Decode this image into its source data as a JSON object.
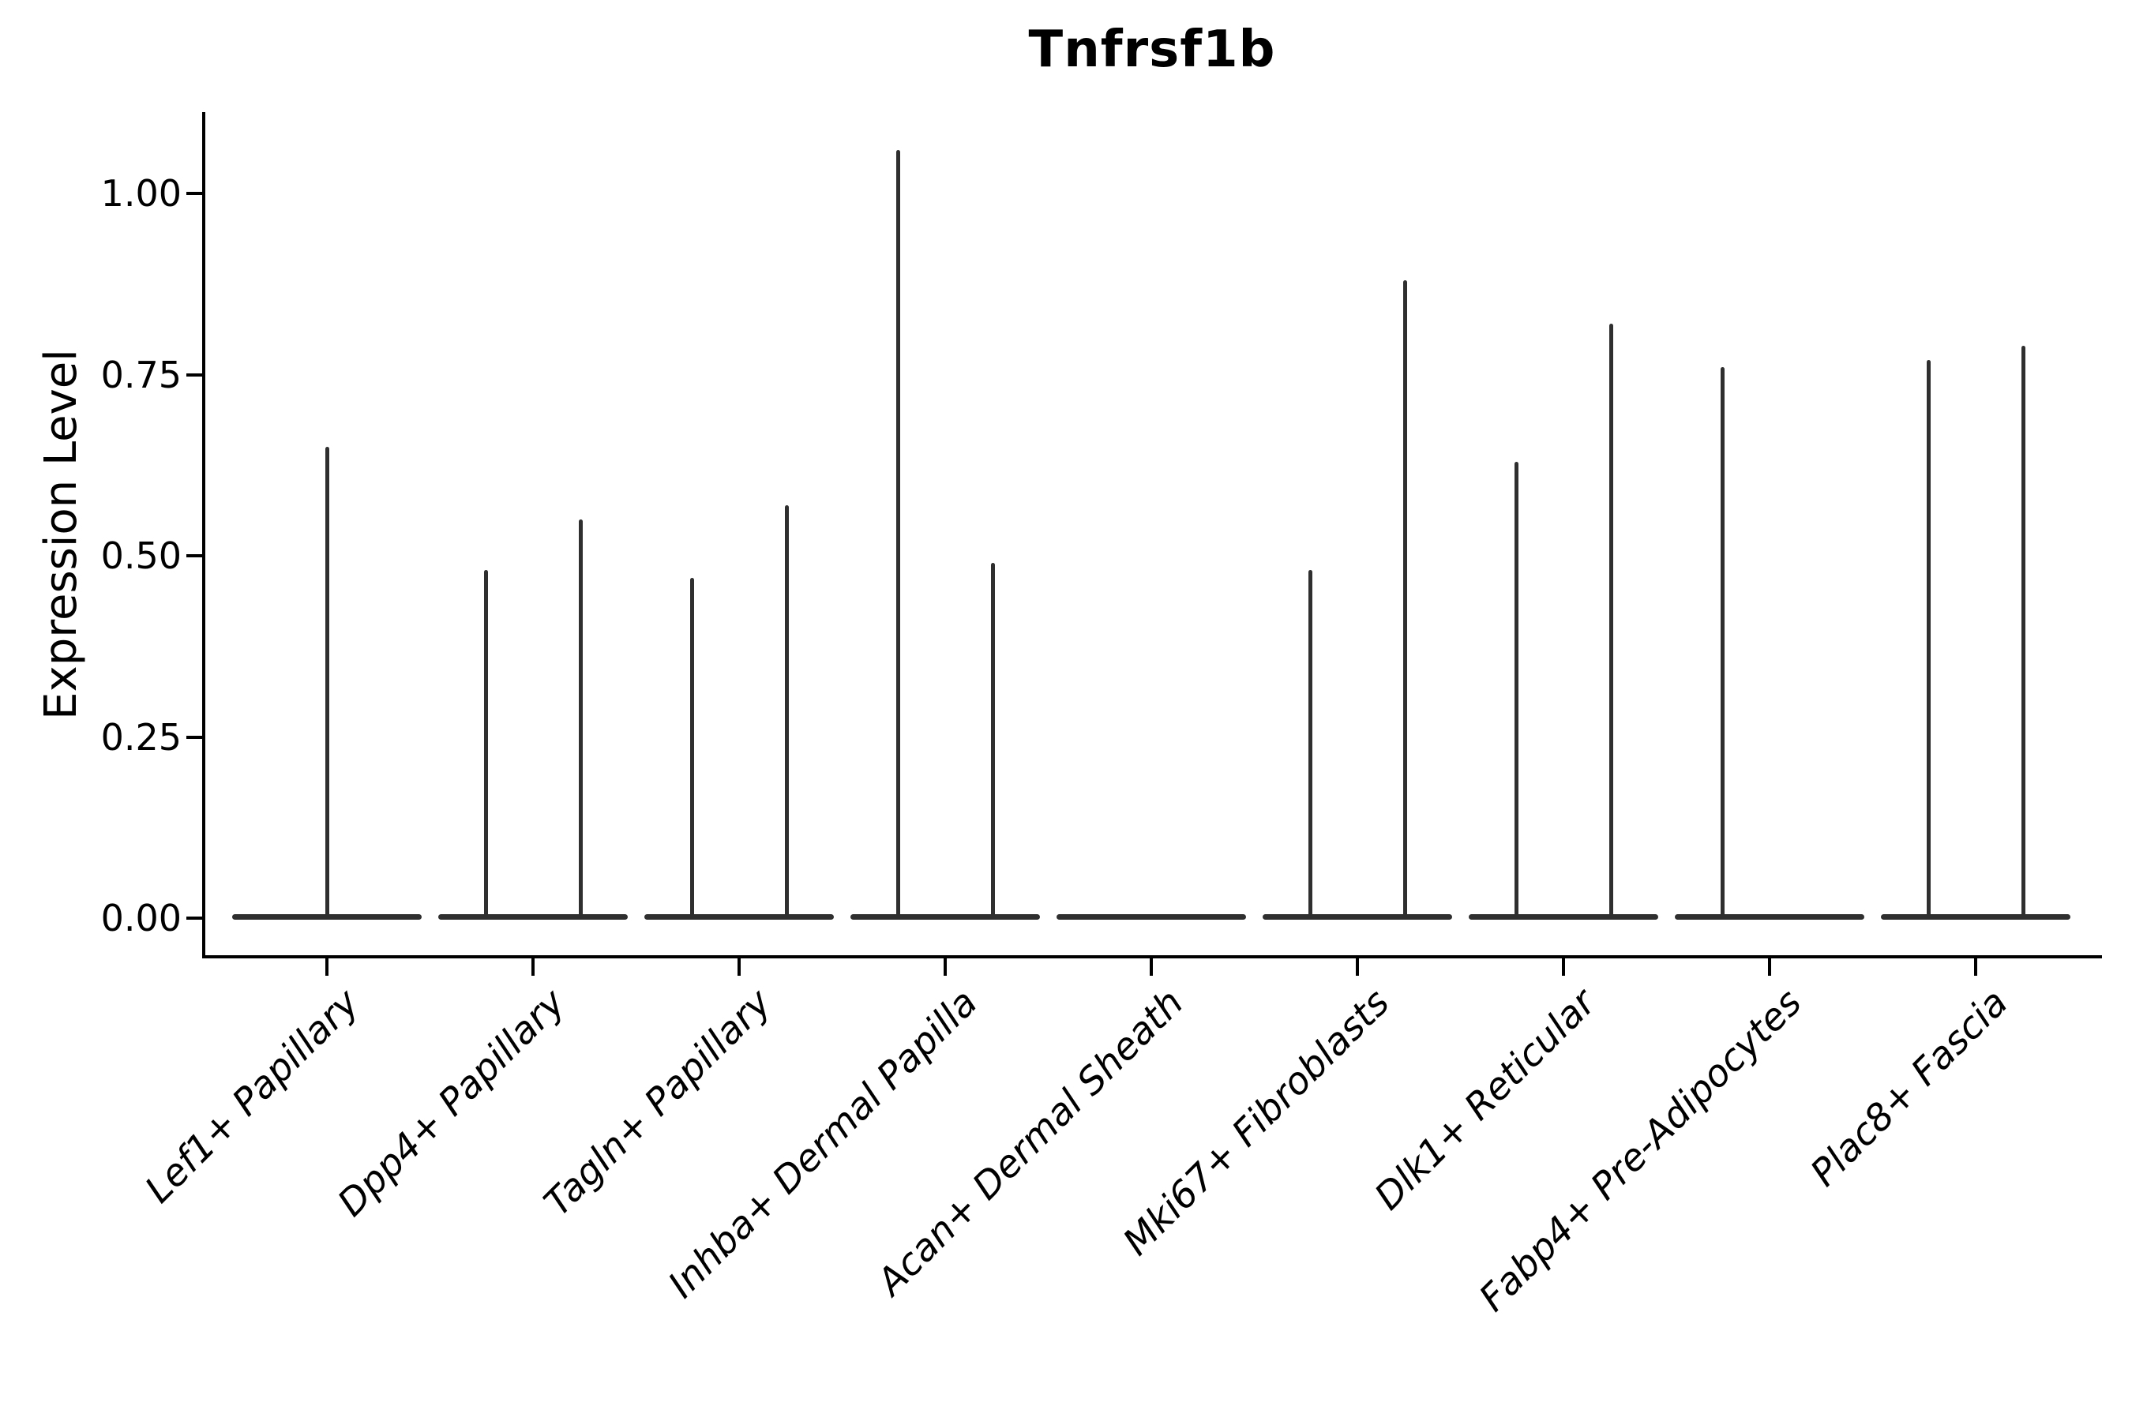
{
  "page": {
    "background": "#ffffff"
  },
  "chart_data": {
    "type": "violin",
    "title": "Tnfrsf1b",
    "xlabel": "",
    "ylabel": "Expression Level",
    "grid": false,
    "legend": "none",
    "line_color": "#2f2f2f",
    "axis_color": "#000000",
    "ylim": [
      -0.05,
      1.11
    ],
    "ytick_labels": [
      "0.00",
      "0.25",
      "0.50",
      "0.75",
      "1.00"
    ],
    "ytick_values": [
      0.0,
      0.25,
      0.5,
      0.75,
      1.0
    ],
    "categories": [
      "Lef1+ Papillary",
      "Dpp4+ Papillary",
      "Tagln+ Papillary",
      "Inhba+ Dermal Papilla",
      "Acan+ Dermal Sheath",
      "Mki67+ Fibroblasts",
      "Dlk1+ Reticular",
      "Fabp4+ Pre-Adipocytes",
      "Plac8+ Fascia"
    ],
    "description": "Violin plot of Tnfrsf1b expression; each category shows a flat density baseline at 0 with thin vertical density spikes whose tops mark the maximum expression level; offset -1 = left group spike, 0 = centered spike, 1 = right group spike",
    "violins": [
      {
        "category": "Lef1+ Papillary",
        "spikes": [
          {
            "offset": 0,
            "max": 0.65
          }
        ]
      },
      {
        "category": "Dpp4+ Papillary",
        "spikes": [
          {
            "offset": -1,
            "max": 0.48
          },
          {
            "offset": 1,
            "max": 0.55
          }
        ]
      },
      {
        "category": "Tagln+ Papillary",
        "spikes": [
          {
            "offset": -1,
            "max": 0.47
          },
          {
            "offset": 1,
            "max": 0.57
          }
        ]
      },
      {
        "category": "Inhba+ Dermal Papilla",
        "spikes": [
          {
            "offset": -1,
            "max": 1.06
          },
          {
            "offset": 1,
            "max": 0.49
          }
        ]
      },
      {
        "category": "Acan+ Dermal Sheath",
        "spikes": []
      },
      {
        "category": "Mki67+ Fibroblasts",
        "spikes": [
          {
            "offset": -1,
            "max": 0.48
          },
          {
            "offset": 1,
            "max": 0.88
          }
        ]
      },
      {
        "category": "Dlk1+ Reticular",
        "spikes": [
          {
            "offset": -1,
            "max": 0.63
          },
          {
            "offset": 1,
            "max": 0.82
          }
        ]
      },
      {
        "category": "Fabp4+ Pre-Adipocytes",
        "spikes": [
          {
            "offset": -1,
            "max": 0.76
          }
        ]
      },
      {
        "category": "Plac8+ Fascia",
        "spikes": [
          {
            "offset": -1,
            "max": 0.77
          },
          {
            "offset": 1,
            "max": 0.79
          }
        ]
      }
    ]
  }
}
